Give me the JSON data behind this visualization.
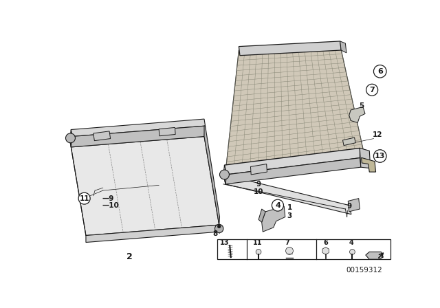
{
  "bg_color": "#ffffff",
  "line_color": "#1a1a1a",
  "roller_fill": "#d0d0d0",
  "panel_fill": "#e8e8e8",
  "panel_stroke": "#888888",
  "net_fill": "#c8c0b0",
  "net_line": "#666666",
  "bracket_fill": "#cccccc",
  "footer_code": "00159312"
}
